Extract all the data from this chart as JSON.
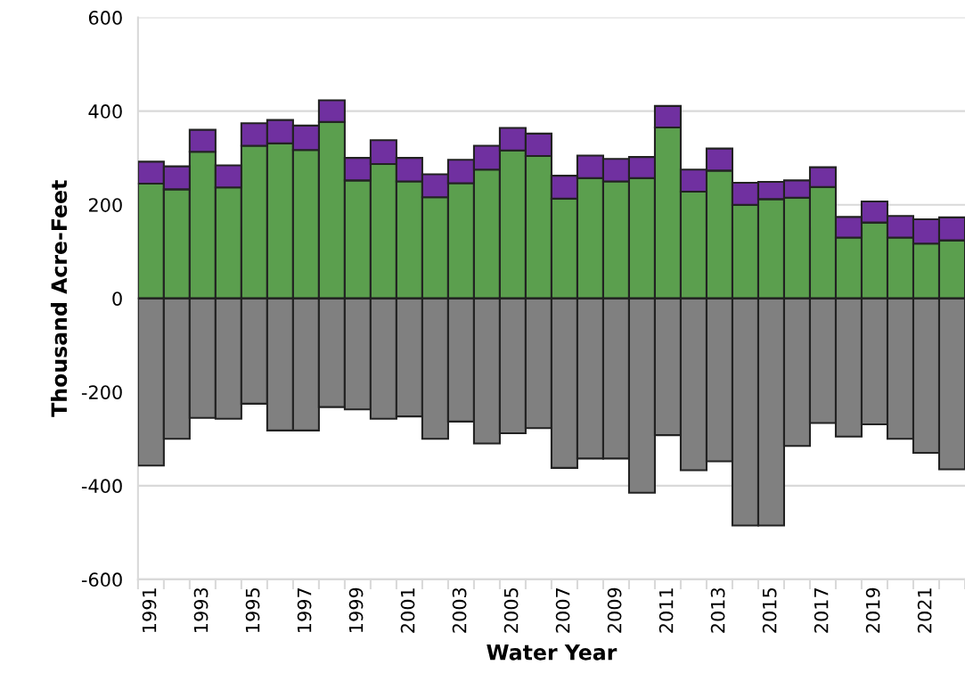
{
  "chart_data": {
    "type": "bar",
    "stacked": true,
    "xlabel": "Water Year",
    "ylabel": "Thousand Acre-Feet",
    "categories": [
      "1991",
      null,
      "1993",
      null,
      "1995",
      null,
      "1997",
      null,
      "1999",
      null,
      "2001",
      null,
      "2003",
      null,
      "2005",
      null,
      "2007",
      null,
      "2009",
      null,
      "2011",
      null,
      "2013",
      null,
      "2015",
      null,
      "2017",
      null,
      "2019",
      null,
      "2021",
      null
    ],
    "series": [
      {
        "color": "#5b9f4e",
        "values": [
          245,
          233,
          313,
          237,
          326,
          331,
          317,
          377,
          252,
          287,
          250,
          216,
          246,
          275,
          316,
          304,
          213,
          257,
          250,
          257,
          365,
          228,
          273,
          200,
          212,
          215,
          238,
          130,
          162,
          130,
          117,
          124
        ]
      },
      {
        "color": "#7030a0",
        "values": [
          47,
          49,
          47,
          47,
          48,
          50,
          52,
          46,
          48,
          51,
          50,
          49,
          50,
          51,
          48,
          48,
          49,
          48,
          48,
          45,
          46,
          47,
          47,
          47,
          37,
          37,
          42,
          44,
          45,
          46,
          52,
          49
        ]
      },
      {
        "color": "#808080",
        "values": [
          -357,
          -300,
          -255,
          -257,
          -225,
          -282,
          -282,
          -232,
          -237,
          -257,
          -252,
          -300,
          -263,
          -310,
          -288,
          -277,
          -362,
          -342,
          -342,
          -415,
          -292,
          -367,
          -348,
          -485,
          -485,
          -315,
          -266,
          -295,
          -269,
          -300,
          -330,
          -365
        ]
      }
    ],
    "ylim": [
      -600,
      600
    ],
    "yticks": [
      -600,
      -400,
      -200,
      0,
      200,
      400,
      600
    ],
    "grid": "y",
    "legend": false
  }
}
